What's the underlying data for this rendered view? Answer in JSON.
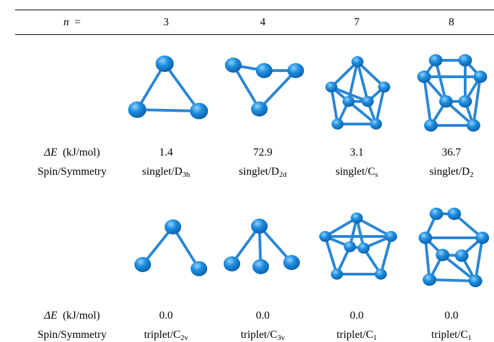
{
  "table": {
    "header": {
      "n_label": {
        "var": "n",
        "eq": "="
      },
      "columns": [
        "3",
        "4",
        "7",
        "8"
      ]
    },
    "row_labels": {
      "delta_e": {
        "symbol": "ΔE",
        "unit": "(kJ/mol)"
      },
      "symmetry": "Spin/Symmetry"
    },
    "groups": [
      {
        "delta_e": [
          "1.4",
          "72.9",
          "3.1",
          "36.7"
        ],
        "symmetry": [
          {
            "prefix": "singlet/D",
            "sub": "3h"
          },
          {
            "prefix": "singlet/D",
            "sub": "2d"
          },
          {
            "prefix": "singlet/C",
            "sub": "s"
          },
          {
            "prefix": "singlet/D",
            "sub": "2"
          }
        ]
      },
      {
        "delta_e": [
          "0.0",
          "0.0",
          "0.0",
          "0.0"
        ],
        "symmetry": [
          {
            "prefix": "triplet/C",
            "sub": "2v"
          },
          {
            "prefix": "triplet/C",
            "sub": "3v"
          },
          {
            "prefix": "triplet/C",
            "sub": "1"
          },
          {
            "prefix": "triplet/C",
            "sub": "1"
          }
        ]
      }
    ]
  }
}
